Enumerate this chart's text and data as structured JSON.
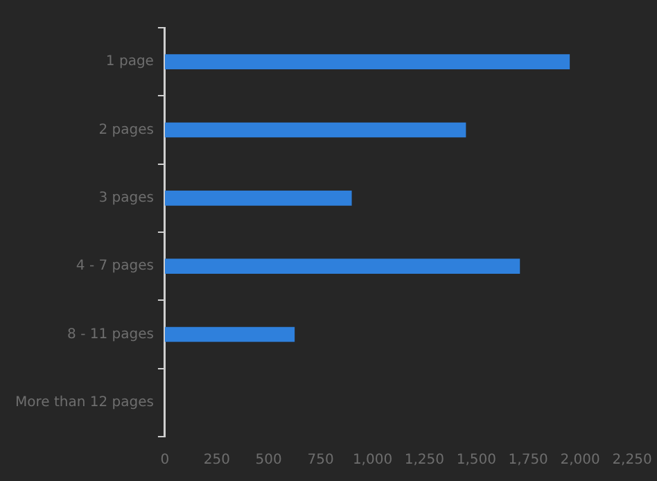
{
  "chart_data": {
    "type": "bar",
    "orientation": "horizontal",
    "categories": [
      "1 page",
      "2 pages",
      "3 pages",
      "4 - 7 pages",
      "8 - 11 pages",
      "More than 12 pages"
    ],
    "values": [
      1950,
      1450,
      900,
      1710,
      625,
      0
    ],
    "color": "#2f80dc",
    "xlim": [
      0,
      2250
    ],
    "xticks": [
      {
        "value": 0,
        "label": "0"
      },
      {
        "value": 250,
        "label": "250"
      },
      {
        "value": 500,
        "label": "500"
      },
      {
        "value": 750,
        "label": "750"
      },
      {
        "value": 1000,
        "label": "1,000"
      },
      {
        "value": 1250,
        "label": "1,250"
      },
      {
        "value": 1500,
        "label": "1,500"
      },
      {
        "value": 1750,
        "label": "1,750"
      },
      {
        "value": 2000,
        "label": "2,000"
      },
      {
        "value": 2250,
        "label": "2,250"
      }
    ],
    "grid": false
  }
}
